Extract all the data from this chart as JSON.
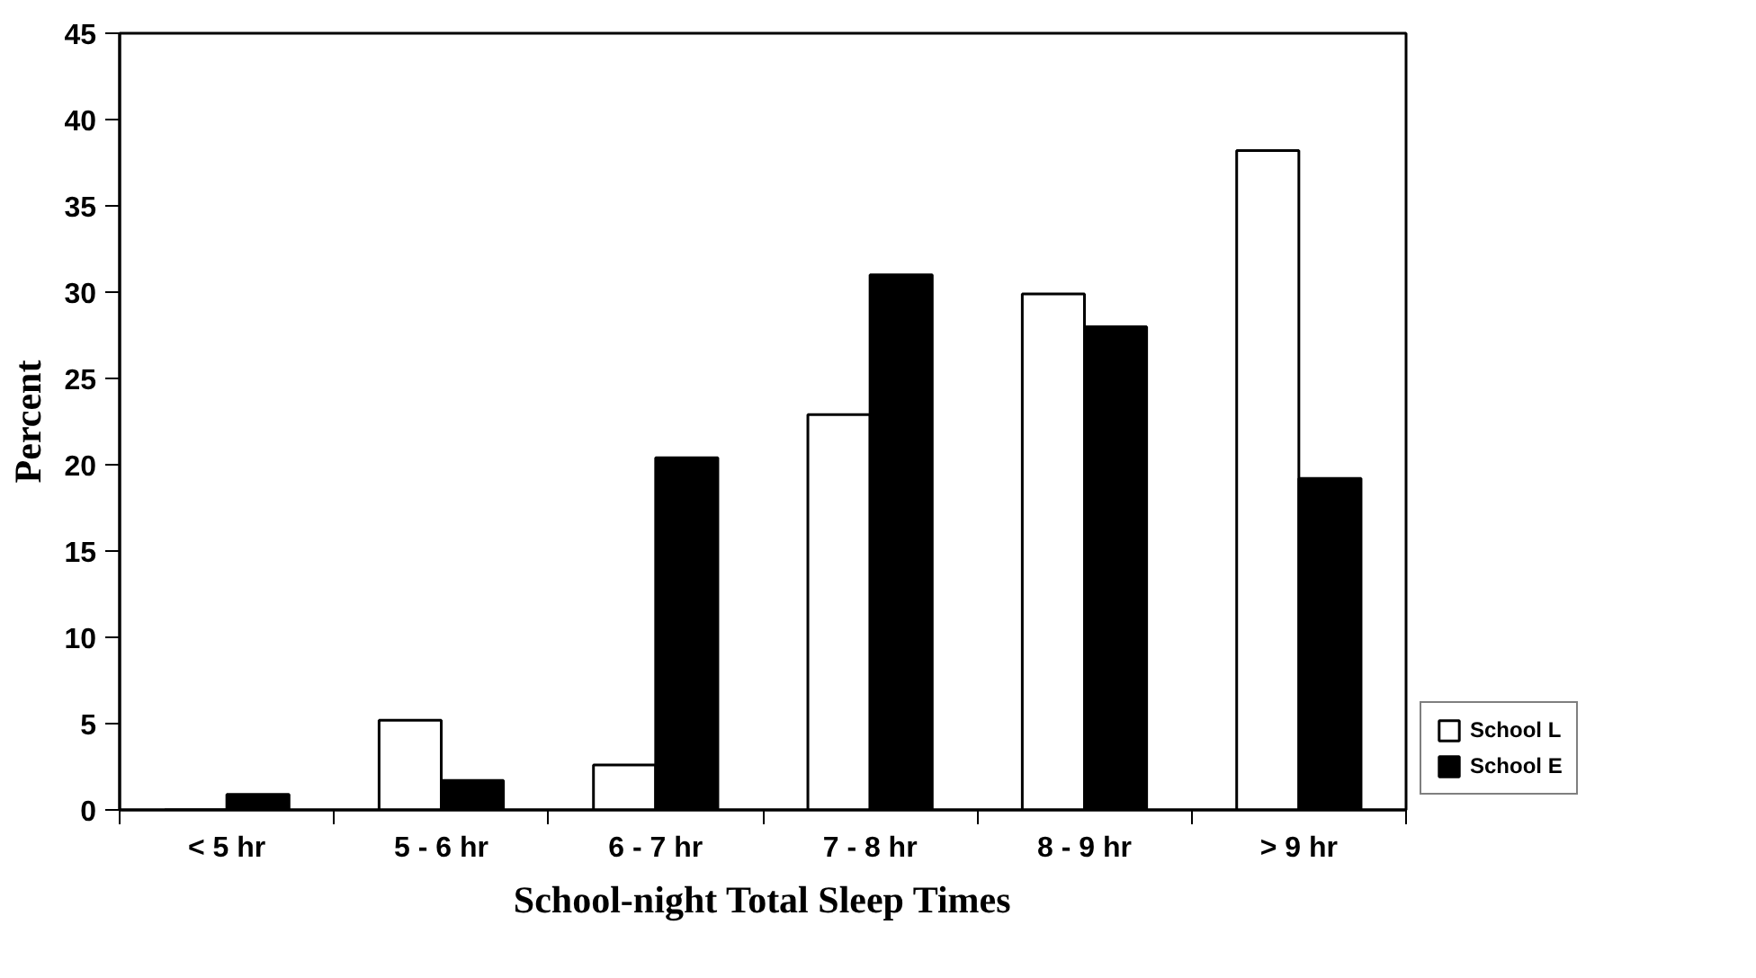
{
  "chart_data": {
    "type": "bar",
    "xlabel": "School-night Total Sleep Times",
    "ylabel": "Percent",
    "categories": [
      "< 5 hr",
      "5 - 6 hr",
      "6 - 7 hr",
      "7 - 8 hr",
      "8 - 9 hr",
      "> 9 hr"
    ],
    "series": [
      {
        "name": "School L",
        "color": "#ffffff",
        "values": [
          0,
          5.2,
          2.6,
          22.9,
          29.9,
          38.2
        ]
      },
      {
        "name": "School E",
        "color": "#000000",
        "values": [
          0.9,
          1.7,
          20.4,
          31.0,
          28.0,
          19.2
        ]
      }
    ],
    "ylim": [
      0,
      45
    ],
    "yticks": [
      0,
      5,
      10,
      15,
      20,
      25,
      30,
      35,
      40,
      45
    ],
    "grid": false,
    "legend": "right"
  }
}
